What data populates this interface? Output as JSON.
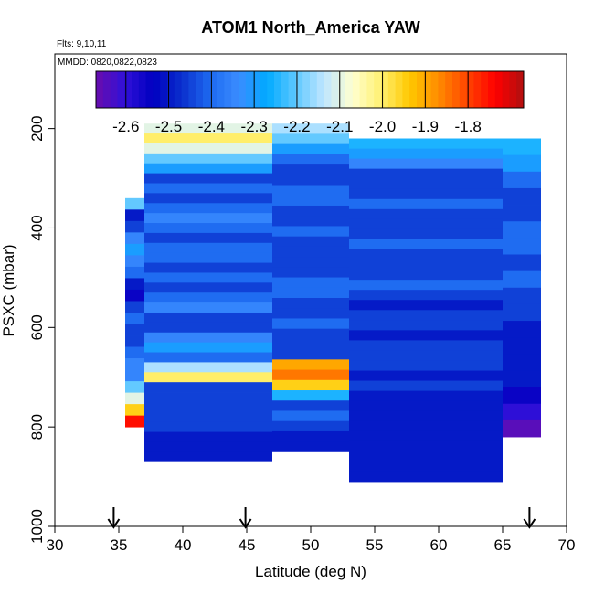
{
  "chart_data": {
    "type": "heatmap",
    "title": "ATOM1 North_America YAW",
    "annotations": {
      "flights": "Flts: 9,10,11",
      "dates": "MMDD: 0820,0822,0823"
    },
    "xlabel": "Latitude (deg N)",
    "ylabel": "PSXC (mbar)",
    "xlim": [
      30,
      70
    ],
    "ylim": [
      1000,
      50
    ],
    "y_reversed": true,
    "x_ticks": [
      "30",
      "35",
      "40",
      "45",
      "50",
      "55",
      "60",
      "65",
      "70"
    ],
    "y_ticks": [
      "200",
      "400",
      "600",
      "800",
      "1000"
    ],
    "grid": false,
    "colorbar": {
      "placement": "top",
      "ticks": [
        "-2.6",
        "-2.5",
        "-2.4",
        "-2.3",
        "-2.2",
        "-2.1",
        "-2.0",
        "-1.9",
        "-1.8"
      ],
      "range": [
        -2.67,
        -1.67
      ],
      "colors": [
        "#6a0dad",
        "#3010d8",
        "#0000c0",
        "#0a2fcc",
        "#1e6af0",
        "#3a8cff",
        "#00aaff",
        "#5ec8ff",
        "#bfe6ff",
        "#ffffd0",
        "#fff070",
        "#ffc800",
        "#ff8c00",
        "#ff4500",
        "#ff0000",
        "#b01010"
      ]
    },
    "arrows_at_latitude": [
      34.6,
      44.9,
      67.1
    ],
    "profiles": [
      {
        "lat": [
          35.5,
          38
        ],
        "p": [
          340,
          800
        ],
        "values": [
          -2.2,
          -2.5,
          -2.45,
          -2.35,
          -2.3,
          -2.35,
          -2.4,
          -2.5,
          -2.55,
          -2.45,
          -2.4,
          -2.45,
          -2.45,
          -2.4,
          -2.35,
          -2.35,
          -2.2,
          -2.1,
          -1.95,
          -1.75
        ]
      },
      {
        "lat": [
          37,
          47
        ],
        "p": [
          190,
          870
        ],
        "values": [
          -2.1,
          -2.0,
          -2.1,
          -2.2,
          -2.3,
          -2.45,
          -2.4,
          -2.45,
          -2.4,
          -2.35,
          -2.4,
          -2.45,
          -2.4,
          -2.4,
          -2.45,
          -2.4,
          -2.45,
          -2.4,
          -2.35,
          -2.45,
          -2.45,
          -2.35,
          -2.3,
          -2.4,
          -2.15,
          -2.0,
          -2.45,
          -2.45,
          -2.45,
          -2.45,
          -2.45,
          -2.5,
          -2.5,
          -2.5
        ]
      },
      {
        "lat": [
          47,
          53
        ],
        "p": [
          190,
          850
        ],
        "values": [
          -2.15,
          -2.2,
          -2.3,
          -2.4,
          -2.45,
          -2.45,
          -2.4,
          -2.4,
          -2.45,
          -2.45,
          -2.4,
          -2.45,
          -2.45,
          -2.45,
          -2.45,
          -2.4,
          -2.4,
          -2.45,
          -2.45,
          -2.4,
          -2.45,
          -2.45,
          -2.45,
          -1.9,
          -1.85,
          -1.95,
          -2.25,
          -2.45,
          -2.4,
          -2.45,
          -2.5,
          -2.5
        ]
      },
      {
        "lat": [
          53,
          65
        ],
        "p": [
          220,
          910
        ],
        "values": [
          -2.25,
          -2.3,
          -2.35,
          -2.45,
          -2.45,
          -2.45,
          -2.4,
          -2.45,
          -2.45,
          -2.45,
          -2.4,
          -2.45,
          -2.45,
          -2.45,
          -2.4,
          -2.45,
          -2.5,
          -2.45,
          -2.45,
          -2.5,
          -2.45,
          -2.45,
          -2.45,
          -2.5,
          -2.45,
          -2.5,
          -2.5,
          -2.5,
          -2.5,
          -2.5,
          -2.5,
          -2.5,
          -2.5,
          -2.5
        ]
      },
      {
        "lat": [
          65,
          68
        ],
        "p": [
          220,
          820
        ],
        "values": [
          -2.25,
          -2.3,
          -2.4,
          -2.45,
          -2.45,
          -2.4,
          -2.4,
          -2.45,
          -2.4,
          -2.45,
          -2.45,
          -2.5,
          -2.5,
          -2.5,
          -2.5,
          -2.55,
          -2.6,
          -2.65
        ]
      }
    ]
  }
}
